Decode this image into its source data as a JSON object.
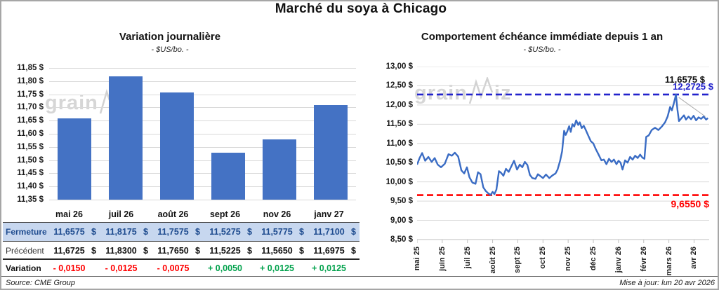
{
  "main_title": "Marché du soya à Chicago",
  "watermark": {
    "part1": "grain",
    "part2": "iz"
  },
  "footer": {
    "source": "Source: CME Group",
    "updated": "Mise à jour: lun 20 avr 2026"
  },
  "colors": {
    "bar": "#4472C4",
    "line": "#3a6cc4",
    "max_dash": "#2222cc",
    "min_dash": "#ff0000",
    "fermeture_bg": "#c7d7ef",
    "fermeture_text": "#1f4c8f",
    "negative": "#ff0000",
    "positive": "#00a14b",
    "grid": "#d9d9d9"
  },
  "table": {
    "header": [
      "mai 26",
      "juil 26",
      "août 26",
      "sept 26",
      "nov 26",
      "janv 27"
    ],
    "rows": [
      {
        "label": "Fermeture",
        "cells": [
          "11,6575 $",
          "11,8175 $",
          "11,7575 $",
          "11,5275 $",
          "11,5775 $",
          "11,7100 $"
        ],
        "trend": [
          "",
          "",
          "",
          "",
          "",
          ""
        ]
      },
      {
        "label": "Précédent",
        "cells": [
          "11,6725 $",
          "11,8300 $",
          "11,7650 $",
          "11,5225 $",
          "11,5650 $",
          "11,6975 $"
        ],
        "trend": [
          "",
          "",
          "",
          "",
          "",
          ""
        ]
      },
      {
        "label": "Variation",
        "cells": [
          "- 0,0150",
          "- 0,0125",
          "- 0,0075",
          "+ 0,0050",
          "+ 0,0125",
          "+ 0,0125"
        ],
        "trend": [
          "neg",
          "neg",
          "neg",
          "pos",
          "pos",
          "pos"
        ]
      }
    ]
  },
  "chart_data": [
    {
      "type": "bar",
      "title": "Variation journalière",
      "subtitle": "- $US/bo. -",
      "categories": [
        "mai 26",
        "juil 26",
        "août 26",
        "sept 26",
        "nov 26",
        "janv 27"
      ],
      "values": [
        11.6575,
        11.8175,
        11.7575,
        11.5275,
        11.5775,
        11.71
      ],
      "ylim": [
        11.35,
        11.85
      ],
      "ytick_step": 0.05,
      "ytick_labels": [
        "11,85 $",
        "11,80 $",
        "11,75 $",
        "11,70 $",
        "11,65 $",
        "11,60 $",
        "11,55 $",
        "11,50 $",
        "11,45 $",
        "11,40 $",
        "11,35 $"
      ],
      "grid": true,
      "legend": "none"
    },
    {
      "type": "line",
      "title": "Comportement échéance immédiate depuis 1 an",
      "subtitle": "- $US/bo. -",
      "xlabel_ticks": [
        "mai 25",
        "juin 25",
        "juil 25",
        "août 25",
        "sept 25",
        "oct 25",
        "nov 25",
        "déc 25",
        "janv 26",
        "févr 26",
        "mars 26",
        "avr 26"
      ],
      "ylim": [
        8.5,
        13.0
      ],
      "ytick_step": 0.5,
      "ytick_labels": [
        "13,00 $",
        "12,50 $",
        "12,00 $",
        "11,50 $",
        "11,00 $",
        "10,50 $",
        "10,00 $",
        "9,50 $",
        "9,00 $",
        "8,50 $"
      ],
      "grid": true,
      "legend": "none",
      "max_line": {
        "value": 12.2725,
        "label": "12,2725 $"
      },
      "min_line": {
        "value": 9.655,
        "label": "9,6550 $"
      },
      "last_value_label": "11,6575 $",
      "x_months_span": 11.6,
      "points": [
        [
          0.0,
          10.45
        ],
        [
          0.1,
          10.62
        ],
        [
          0.2,
          10.75
        ],
        [
          0.32,
          10.55
        ],
        [
          0.45,
          10.65
        ],
        [
          0.58,
          10.52
        ],
        [
          0.7,
          10.62
        ],
        [
          0.82,
          10.45
        ],
        [
          0.95,
          10.38
        ],
        [
          1.1,
          10.47
        ],
        [
          1.25,
          10.72
        ],
        [
          1.38,
          10.68
        ],
        [
          1.5,
          10.76
        ],
        [
          1.63,
          10.66
        ],
        [
          1.76,
          10.3
        ],
        [
          1.87,
          10.22
        ],
        [
          1.98,
          10.38
        ],
        [
          2.08,
          10.12
        ],
        [
          2.2,
          9.98
        ],
        [
          2.32,
          9.95
        ],
        [
          2.42,
          10.25
        ],
        [
          2.52,
          10.2
        ],
        [
          2.63,
          9.86
        ],
        [
          2.73,
          9.76
        ],
        [
          2.83,
          9.7
        ],
        [
          2.92,
          9.66
        ],
        [
          3.0,
          9.74
        ],
        [
          3.07,
          9.68
        ],
        [
          3.15,
          9.8
        ],
        [
          3.25,
          10.28
        ],
        [
          3.33,
          10.24
        ],
        [
          3.43,
          10.16
        ],
        [
          3.53,
          10.34
        ],
        [
          3.64,
          10.26
        ],
        [
          3.74,
          10.4
        ],
        [
          3.85,
          10.55
        ],
        [
          3.97,
          10.32
        ],
        [
          4.08,
          10.45
        ],
        [
          4.18,
          10.38
        ],
        [
          4.28,
          10.52
        ],
        [
          4.38,
          10.44
        ],
        [
          4.48,
          10.18
        ],
        [
          4.58,
          10.1
        ],
        [
          4.7,
          10.08
        ],
        [
          4.8,
          10.2
        ],
        [
          4.9,
          10.15
        ],
        [
          5.0,
          10.1
        ],
        [
          5.12,
          10.19
        ],
        [
          5.25,
          10.1
        ],
        [
          5.38,
          10.17
        ],
        [
          5.5,
          10.22
        ],
        [
          5.58,
          10.32
        ],
        [
          5.68,
          10.55
        ],
        [
          5.76,
          10.8
        ],
        [
          5.84,
          11.33
        ],
        [
          5.9,
          11.22
        ],
        [
          5.97,
          11.32
        ],
        [
          6.04,
          11.45
        ],
        [
          6.1,
          11.3
        ],
        [
          6.17,
          11.5
        ],
        [
          6.24,
          11.44
        ],
        [
          6.32,
          11.6
        ],
        [
          6.4,
          11.48
        ],
        [
          6.46,
          11.55
        ],
        [
          6.54,
          11.4
        ],
        [
          6.62,
          11.46
        ],
        [
          6.7,
          11.35
        ],
        [
          6.8,
          11.2
        ],
        [
          6.9,
          11.06
        ],
        [
          7.0,
          11.0
        ],
        [
          7.1,
          10.85
        ],
        [
          7.2,
          10.72
        ],
        [
          7.32,
          10.56
        ],
        [
          7.42,
          10.58
        ],
        [
          7.52,
          10.46
        ],
        [
          7.62,
          10.6
        ],
        [
          7.72,
          10.52
        ],
        [
          7.82,
          10.58
        ],
        [
          7.92,
          10.46
        ],
        [
          8.0,
          10.55
        ],
        [
          8.08,
          10.5
        ],
        [
          8.16,
          10.32
        ],
        [
          8.26,
          10.56
        ],
        [
          8.36,
          10.5
        ],
        [
          8.46,
          10.65
        ],
        [
          8.56,
          10.58
        ],
        [
          8.66,
          10.68
        ],
        [
          8.76,
          10.62
        ],
        [
          8.86,
          10.71
        ],
        [
          8.95,
          10.63
        ],
        [
          9.03,
          10.6
        ],
        [
          9.1,
          11.17
        ],
        [
          9.2,
          11.21
        ],
        [
          9.32,
          11.35
        ],
        [
          9.45,
          11.41
        ],
        [
          9.58,
          11.35
        ],
        [
          9.72,
          11.44
        ],
        [
          9.85,
          11.55
        ],
        [
          9.95,
          11.7
        ],
        [
          10.05,
          11.95
        ],
        [
          10.12,
          11.86
        ],
        [
          10.2,
          12.05
        ],
        [
          10.28,
          12.27
        ],
        [
          10.34,
          11.88
        ],
        [
          10.4,
          11.58
        ],
        [
          10.5,
          11.66
        ],
        [
          10.6,
          11.73
        ],
        [
          10.68,
          11.62
        ],
        [
          10.78,
          11.7
        ],
        [
          10.88,
          11.63
        ],
        [
          10.98,
          11.72
        ],
        [
          11.08,
          11.6
        ],
        [
          11.18,
          11.68
        ],
        [
          11.28,
          11.64
        ],
        [
          11.38,
          11.7
        ],
        [
          11.48,
          11.62
        ],
        [
          11.55,
          11.66
        ]
      ]
    }
  ]
}
